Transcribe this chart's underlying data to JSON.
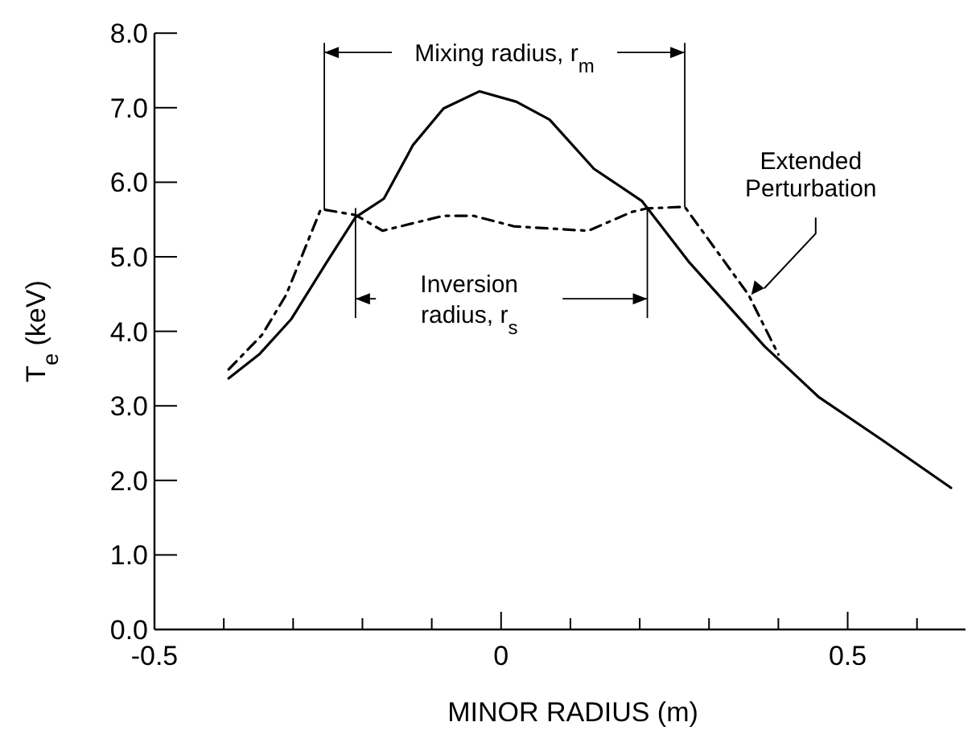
{
  "chart_data": {
    "type": "line",
    "xlabel": "MINOR RADIUS (m)",
    "ylabel": "T$_{e}$ (keV)",
    "xlim": [
      -0.5,
      0.67
    ],
    "ylim": [
      0,
      8
    ],
    "xticks": [
      {
        "value": -0.5,
        "label": "-0.5"
      },
      {
        "value": -0.4,
        "label": null
      },
      {
        "value": -0.3,
        "label": null
      },
      {
        "value": -0.2,
        "label": null
      },
      {
        "value": -0.1,
        "label": null
      },
      0,
      {
        "value": 0.1,
        "label": null
      },
      {
        "value": 0.2,
        "label": null
      },
      {
        "value": 0.3,
        "label": null
      },
      {
        "value": 0.4,
        "label": null
      },
      0.5,
      {
        "value": 0.6,
        "label": null
      }
    ],
    "yticks": [
      {
        "value": 0,
        "label": "0.0"
      },
      {
        "value": 1,
        "label": "1.0"
      },
      {
        "value": 2,
        "label": "2.0"
      },
      {
        "value": 3,
        "label": "3.0"
      },
      {
        "value": 4,
        "label": "4.0"
      },
      {
        "value": 5,
        "label": "5.0"
      },
      {
        "value": 6,
        "label": "6.0"
      },
      {
        "value": 7,
        "label": "7.0"
      },
      {
        "value": 8,
        "label": "8.0"
      }
    ],
    "series": [
      {
        "color": "#000000",
        "line_style": "solid",
        "x": [
          -0.393,
          -0.349,
          -0.303,
          -0.252,
          -0.21,
          -0.169,
          -0.127,
          -0.083,
          -0.031,
          0.022,
          0.07,
          0.134,
          0.203,
          0.272,
          0.38,
          0.458,
          0.55,
          0.649
        ],
        "values": [
          3.37,
          3.69,
          4.16,
          4.92,
          5.53,
          5.78,
          6.5,
          6.99,
          7.22,
          7.08,
          6.84,
          6.18,
          5.75,
          4.92,
          3.8,
          3.12,
          2.54,
          1.9
        ]
      },
      {
        "color": "#000000",
        "line_style": "dashed",
        "x": [
          -0.393,
          -0.345,
          -0.31,
          -0.26,
          -0.21,
          -0.171,
          -0.083,
          -0.04,
          0.018,
          0.103,
          0.126,
          0.188,
          0.211,
          0.265,
          0.357,
          0.4
        ],
        "values": [
          3.49,
          3.95,
          4.49,
          5.64,
          5.56,
          5.35,
          5.55,
          5.55,
          5.41,
          5.36,
          5.35,
          5.6,
          5.65,
          5.67,
          4.49,
          3.69
        ]
      }
    ],
    "ref_lines": [
      {
        "axis": "x",
        "value": -0.255,
        "label": "Mixing radius, r$_{m}$"
      },
      {
        "axis": "x",
        "value": 0.265,
        "label": null
      },
      {
        "axis": "x",
        "value": -0.21,
        "label": "Inversion radius, r$_{s}$"
      },
      {
        "axis": "x",
        "value": 0.211,
        "label": null
      }
    ],
    "annotations": [
      {
        "text": "Extended Perturbation",
        "x": 0.361,
        "y": 4.49
      }
    ]
  }
}
